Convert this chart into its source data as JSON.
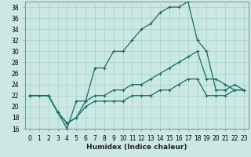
{
  "title": "",
  "xlabel": "Humidex (Indice chaleur)",
  "bg_color": "#cce8e4",
  "grid_color": "#aad4d0",
  "line_color": "#1a6b60",
  "xlim": [
    -0.5,
    23.5
  ],
  "ylim": [
    16,
    39
  ],
  "xticks": [
    0,
    1,
    2,
    3,
    4,
    5,
    6,
    7,
    8,
    9,
    10,
    11,
    12,
    13,
    14,
    15,
    16,
    17,
    18,
    19,
    20,
    21,
    22,
    23
  ],
  "xtick_labels": [
    "0",
    "1",
    "2",
    "3",
    "4",
    "5",
    "6",
    "7",
    "8",
    "9",
    "10",
    "11",
    "12",
    "13",
    "14",
    "15",
    "16",
    "17",
    "18",
    "19",
    "20",
    "21",
    "22",
    "23"
  ],
  "yticks": [
    16,
    18,
    20,
    22,
    24,
    26,
    28,
    30,
    32,
    34,
    36,
    38
  ],
  "line1_x": [
    0,
    1,
    2,
    3,
    4,
    5,
    6,
    7,
    8,
    9,
    10,
    11,
    12,
    13,
    14,
    15,
    16,
    17,
    18,
    19,
    20,
    21,
    22,
    23
  ],
  "line1_y": [
    22,
    22,
    22,
    19,
    16,
    21,
    21,
    27,
    27,
    30,
    30,
    32,
    34,
    35,
    37,
    38,
    38,
    39,
    32,
    30,
    23,
    23,
    24,
    23
  ],
  "line2_x": [
    0,
    2,
    3,
    4,
    5,
    6,
    7,
    8,
    9,
    10,
    11,
    12,
    13,
    14,
    15,
    16,
    17,
    18,
    19,
    20,
    21,
    22,
    23
  ],
  "line2_y": [
    22,
    22,
    19,
    17,
    18,
    21,
    22,
    22,
    23,
    23,
    24,
    24,
    25,
    26,
    27,
    28,
    29,
    30,
    25,
    25,
    24,
    23,
    23
  ],
  "line3_x": [
    0,
    2,
    3,
    4,
    5,
    6,
    7,
    8,
    9,
    10,
    11,
    12,
    13,
    14,
    15,
    16,
    17,
    18,
    19,
    20,
    21,
    22,
    23
  ],
  "line3_y": [
    22,
    22,
    19,
    17,
    18,
    20,
    21,
    21,
    21,
    21,
    22,
    22,
    22,
    23,
    23,
    24,
    25,
    25,
    22,
    22,
    22,
    23,
    23
  ],
  "marker": "+",
  "markersize": 3.5,
  "linewidth": 0.9,
  "label_fontsize": 6.5,
  "tick_fontsize": 5.5
}
